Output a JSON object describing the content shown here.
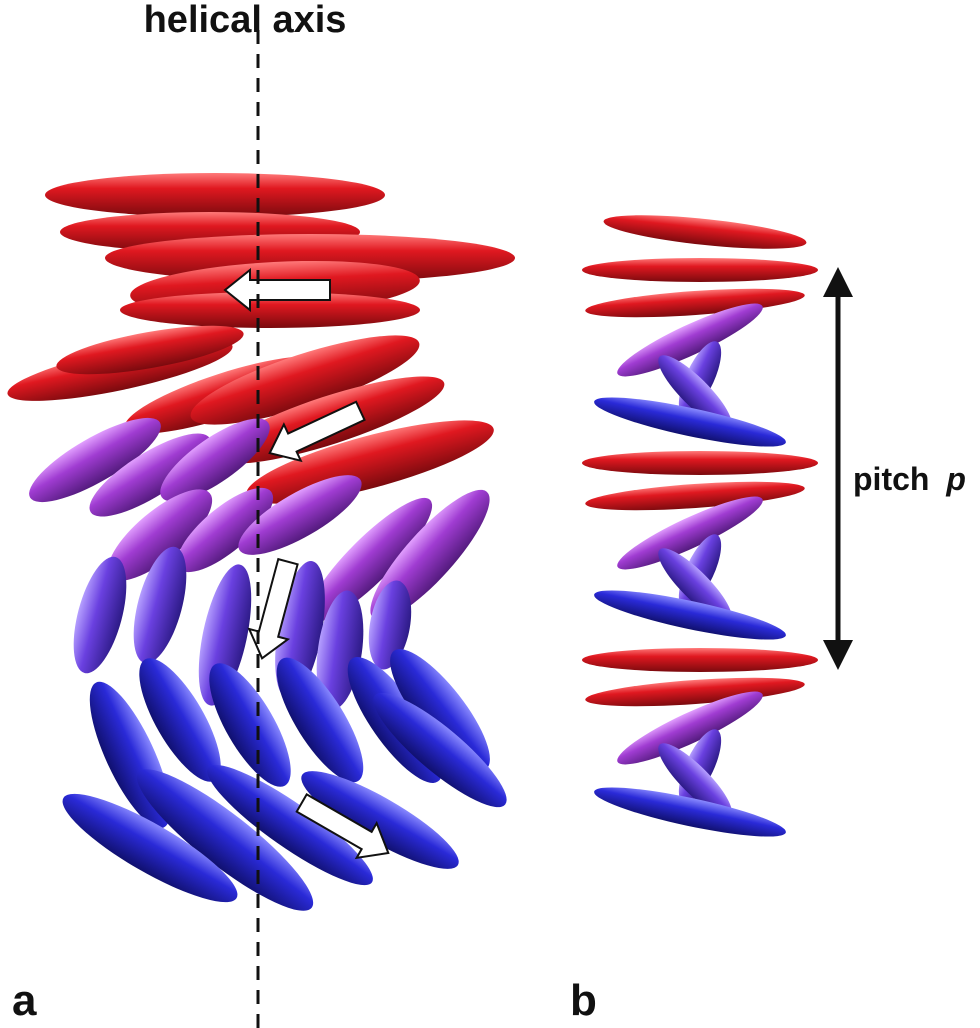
{
  "labels": {
    "helical_axis": "helical axis",
    "pitch": "pitch",
    "pitch_symbol": "p",
    "panel_a": "a",
    "panel_b": "b"
  },
  "colors": {
    "red": "#d0101a",
    "red_dark": "#8a0a10",
    "purple": "#9a3bd0",
    "purple_dark": "#5c1e86",
    "blue": "#2a2ad8",
    "blue_dark": "#14147e",
    "arrow_fill": "#ffffff",
    "axis_line": "#111111"
  }
}
